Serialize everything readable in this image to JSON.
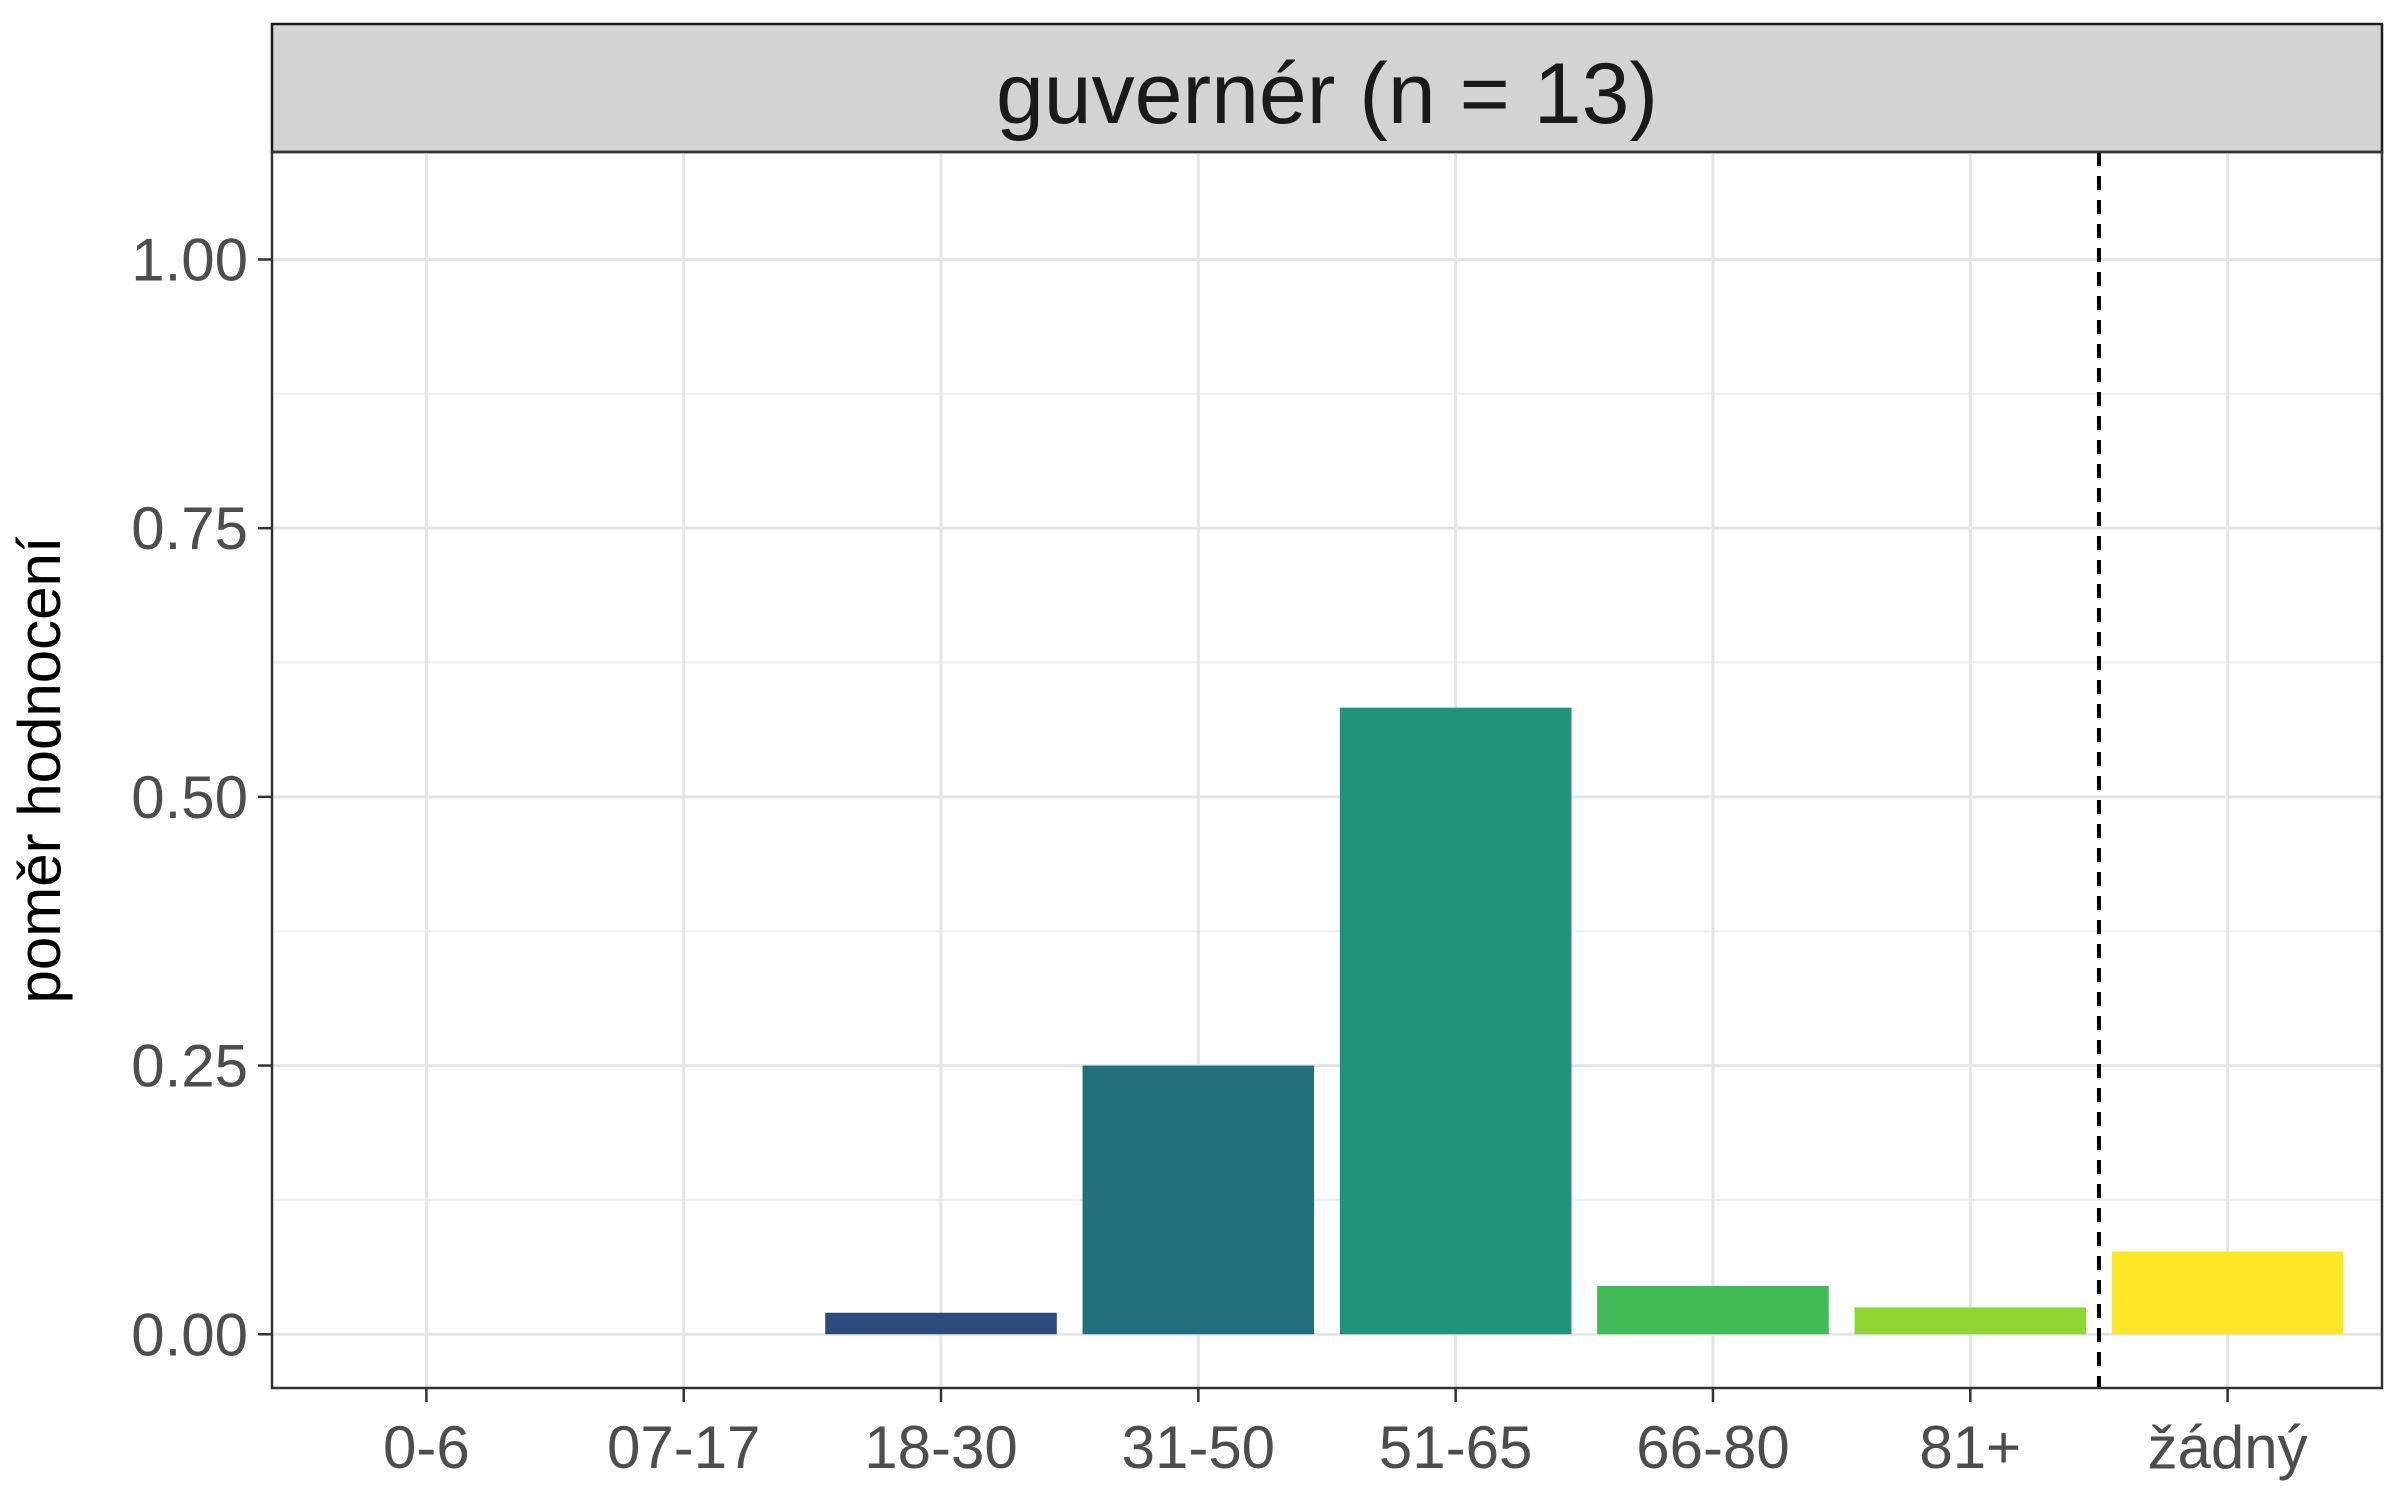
{
  "chart_data": {
    "type": "bar",
    "facet_title": "guvernér (n = 13)",
    "ylabel": "poměr hodnocení",
    "xlabel": "",
    "categories": [
      "0-6",
      "07-17",
      "18-30",
      "31-50",
      "51-65",
      "66-80",
      "81+",
      "žádný"
    ],
    "values": [
      0,
      0,
      0.02,
      0.25,
      0.583,
      0.045,
      0.025,
      0.077
    ],
    "colors": [
      "#440154",
      "#46327e",
      "#2d4a7c",
      "#216f7c",
      "#21937a",
      "#42ba55",
      "#8fd630",
      "#fde725"
    ],
    "ylim": [
      -0.05,
      1.1
    ],
    "yticks": [
      0,
      0.25,
      0.5,
      0.75,
      1.0
    ],
    "ytick_labels": [
      "0.00",
      "0.25",
      "0.50",
      "0.75",
      "1.00"
    ],
    "dashed_separator_between": [
      "81+",
      "žádný"
    ],
    "grid": true
  }
}
